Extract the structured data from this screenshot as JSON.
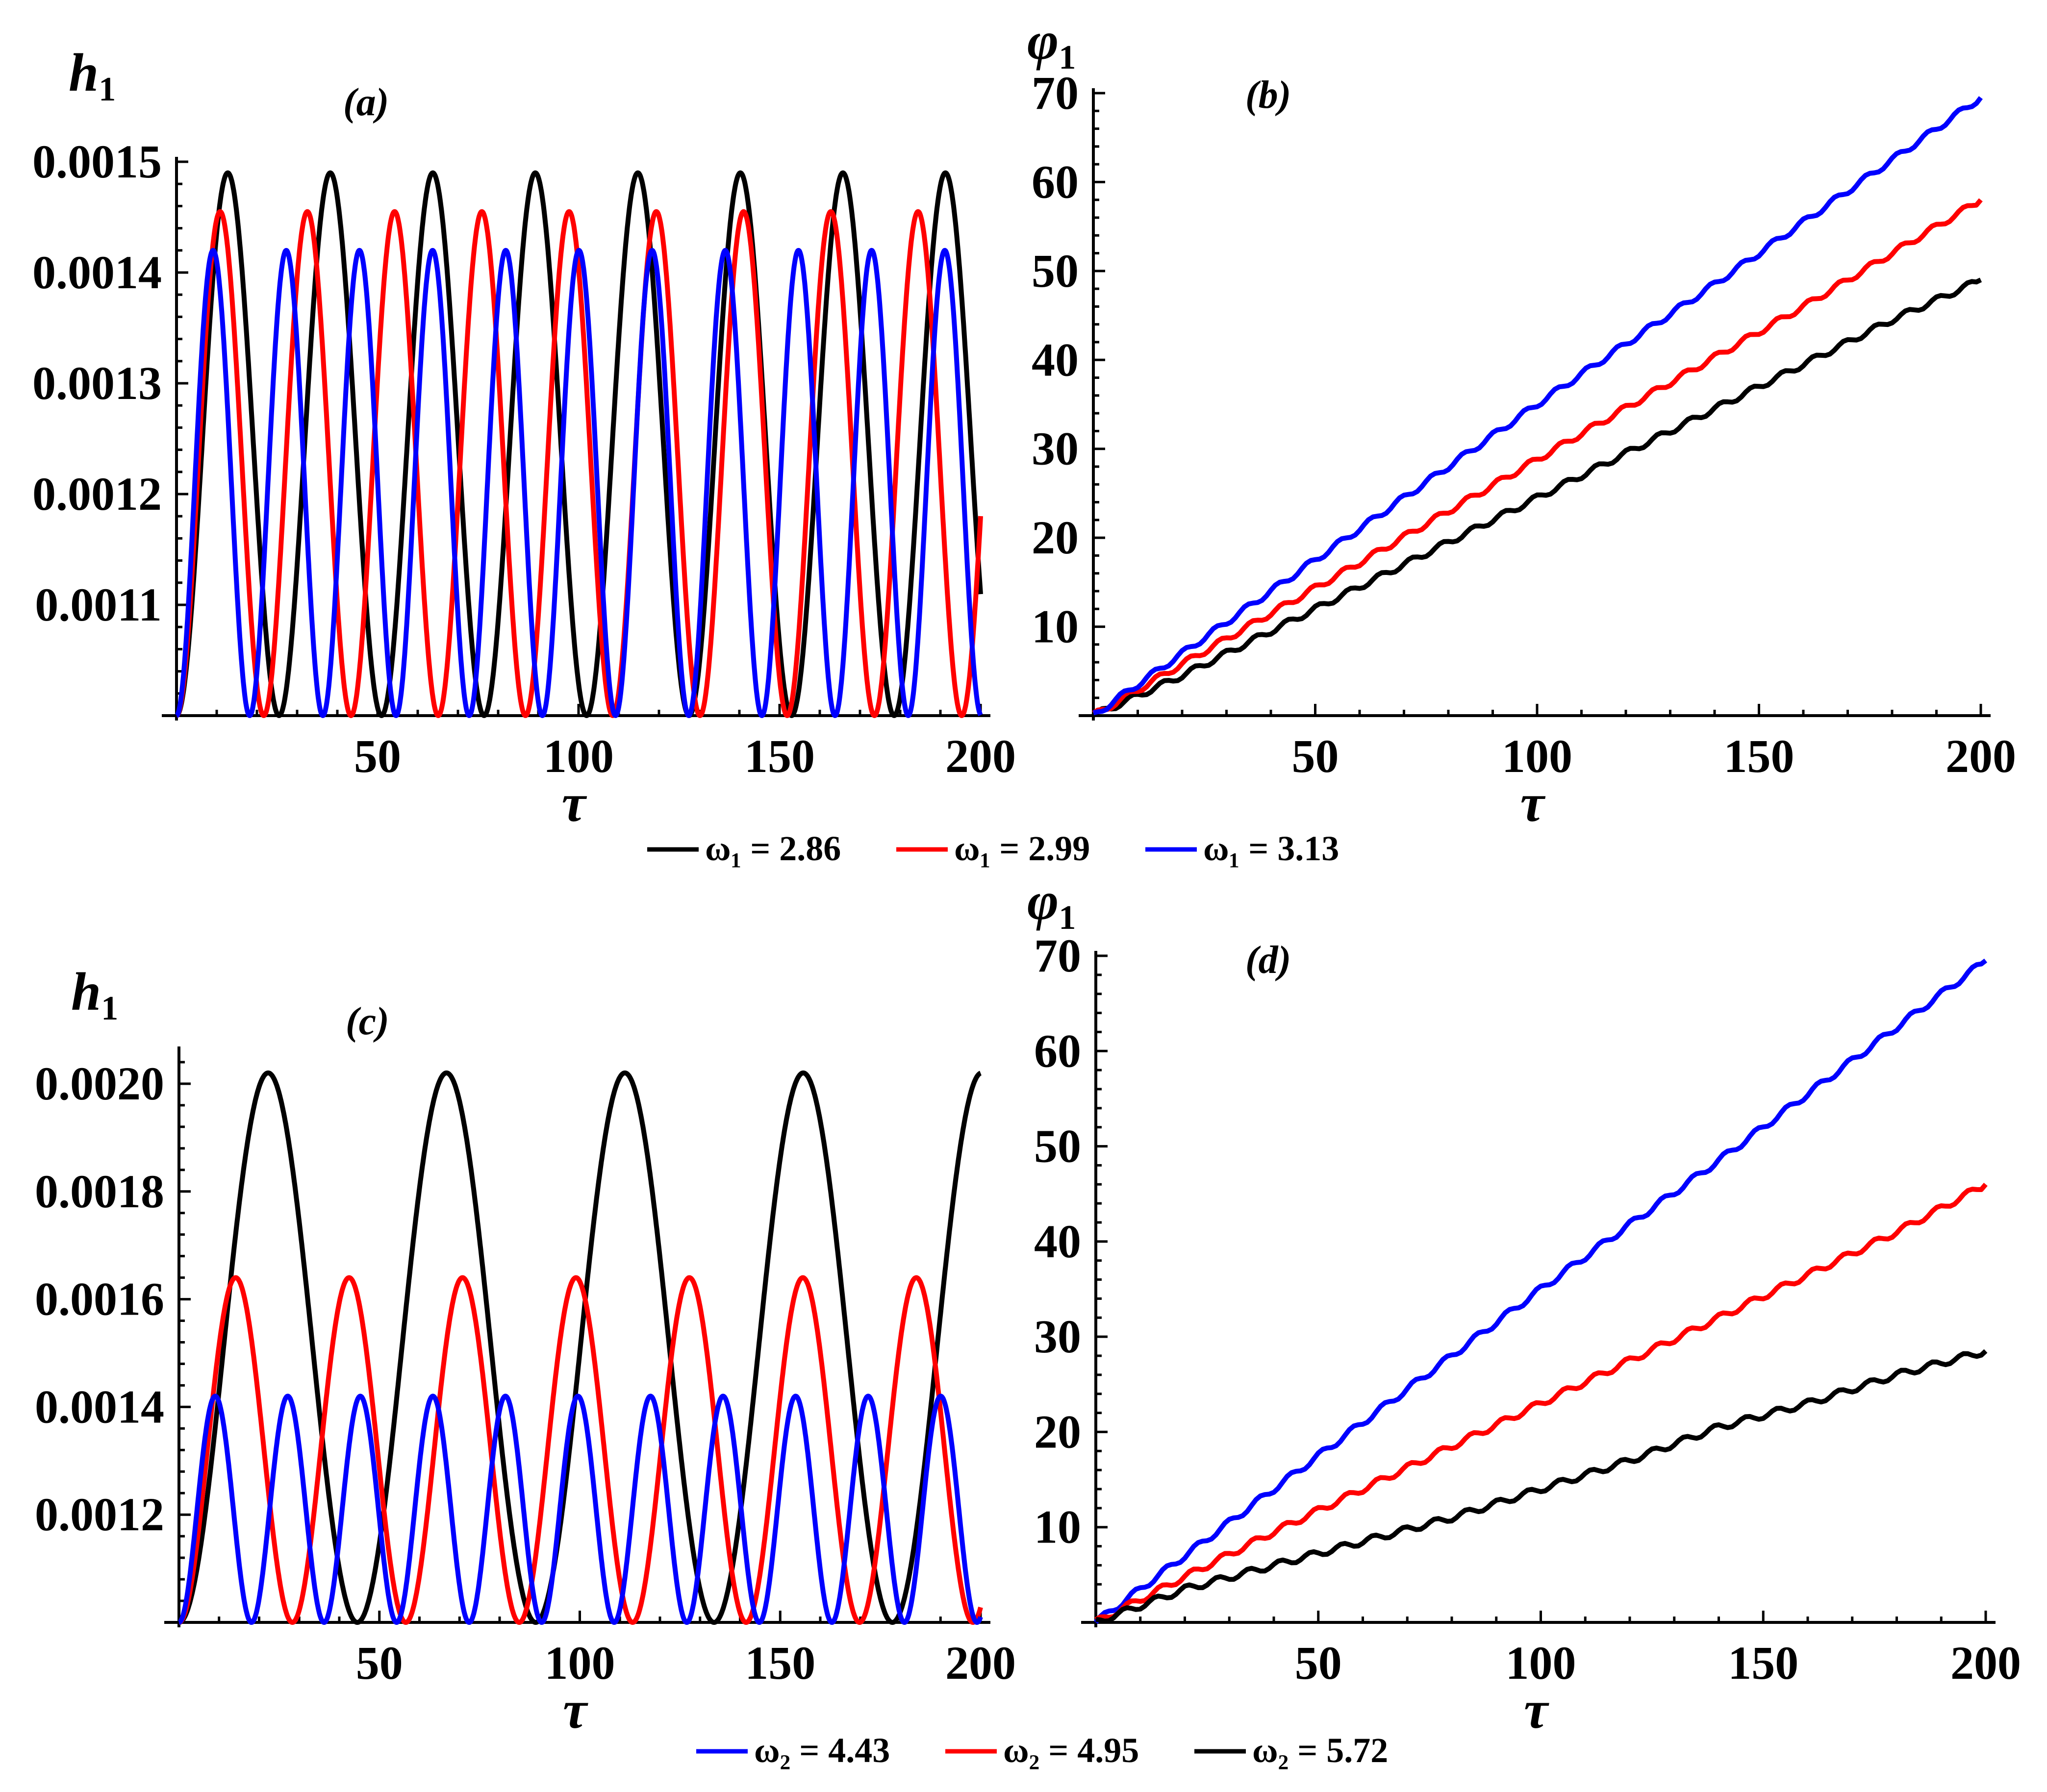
{
  "colors": {
    "black": "#000000",
    "red": "#ff0000",
    "blue": "#0000ff"
  },
  "legends": [
    {
      "items": [
        {
          "label": "ω₁ = 2.86",
          "color": "#000000"
        },
        {
          "label": "ω₁ = 2.99",
          "color": "#ff0000"
        },
        {
          "label": "ω₁ =  3.13",
          "color": "#0000ff"
        }
      ]
    },
    {
      "items": [
        {
          "label": "ω₂ = 4.43",
          "color": "#0000ff"
        },
        {
          "label": "ω₂ = 4.95",
          "color": "#ff0000"
        },
        {
          "label": "ω₂ = 5.72",
          "color": "#000000"
        }
      ]
    }
  ],
  "chart_data": [
    {
      "id": "a",
      "type": "line",
      "panel_label": "(a)",
      "ylabel_sym": "h",
      "ylabel_sub": "1",
      "xlabel": "τ",
      "xlim": [
        0,
        200
      ],
      "ylim": [
        0.001,
        0.0015
      ],
      "xticks": [
        50,
        100,
        150,
        200
      ],
      "xtick_labels": [
        "50",
        "100",
        "150",
        "200"
      ],
      "yticks": [
        0.0011,
        0.0012,
        0.0013,
        0.0014,
        0.0015
      ],
      "ytick_labels": [
        "0.0011",
        "0.0012",
        "0.0013",
        "0.0014",
        "0.0015"
      ],
      "series": [
        {
          "name": "ω₁ = 2.86",
          "color": "#000000",
          "kind": "osc",
          "min": 0.001,
          "max": 0.00149,
          "period": 25.5,
          "xmax": 200
        },
        {
          "name": "ω₁ = 2.99",
          "color": "#ff0000",
          "kind": "osc",
          "min": 0.001,
          "max": 0.001455,
          "period": 21.7,
          "xmax": 200
        },
        {
          "name": "ω₁ = 3.13",
          "color": "#0000ff",
          "kind": "osc",
          "min": 0.001,
          "max": 0.00142,
          "period": 18.2,
          "xmax": 200
        }
      ]
    },
    {
      "id": "b",
      "type": "line",
      "panel_label": "(b)",
      "ylabel_sym": "φ",
      "ylabel_sub": "1",
      "xlabel": "τ",
      "xlim": [
        0,
        200
      ],
      "ylim": [
        0,
        70
      ],
      "xticks": [
        50,
        100,
        150,
        200
      ],
      "xtick_labels": [
        "50",
        "100",
        "150",
        "200"
      ],
      "yticks": [
        10,
        20,
        30,
        40,
        50,
        60,
        70
      ],
      "ytick_labels": [
        "10",
        "20",
        "30",
        "40",
        "50",
        "60",
        "70"
      ],
      "series": [
        {
          "name": "ω₁ = 2.86",
          "color": "#000000",
          "kind": "points",
          "x": [
            0,
            20,
            40,
            60,
            80,
            100,
            120,
            140,
            160,
            180,
            200
          ],
          "y": [
            0,
            4.5,
            9.5,
            14.5,
            19.5,
            24.5,
            29.5,
            34.5,
            39.5,
            44.5,
            49
          ]
        },
        {
          "name": "ω₁ = 2.99",
          "color": "#ff0000",
          "kind": "points",
          "x": [
            0,
            20,
            40,
            60,
            80,
            100,
            120,
            140,
            160,
            180,
            200
          ],
          "y": [
            0,
            5.8,
            11.5,
            17.2,
            23,
            28.8,
            34.6,
            40.3,
            46,
            52,
            58
          ]
        },
        {
          "name": "ω₁ = 3.13",
          "color": "#0000ff",
          "kind": "points",
          "x": [
            0,
            20,
            40,
            60,
            80,
            100,
            120,
            140,
            160,
            180,
            200
          ],
          "y": [
            0,
            7,
            14,
            21,
            28,
            35,
            41.8,
            48.5,
            55.5,
            62.5,
            69.5
          ]
        }
      ]
    },
    {
      "id": "c",
      "type": "line",
      "panel_label": "(c)",
      "ylabel_sym": "h",
      "ylabel_sub": "1",
      "xlabel": "τ",
      "xlim": [
        0,
        200
      ],
      "ylim": [
        0.001,
        0.00206
      ],
      "xticks": [
        50,
        100,
        150,
        200
      ],
      "xtick_labels": [
        "50",
        "100",
        "150",
        "200"
      ],
      "yticks": [
        0.0012,
        0.0014,
        0.0016,
        0.0018,
        0.002
      ],
      "ytick_labels": [
        "0.0012",
        "0.0014",
        "0.0016",
        "0.0018",
        "0.0020"
      ],
      "series": [
        {
          "name": "ω₂ = 5.72",
          "color": "#000000",
          "kind": "osc",
          "min": 0.001,
          "max": 0.00202,
          "period": 44.5,
          "xmax": 200
        },
        {
          "name": "ω₂ = 4.95",
          "color": "#ff0000",
          "kind": "osc",
          "min": 0.001,
          "max": 0.00164,
          "period": 28.3,
          "xmax": 200
        },
        {
          "name": "ω₂ = 4.43",
          "color": "#0000ff",
          "kind": "osc",
          "min": 0.001,
          "max": 0.00142,
          "period": 18.1,
          "xmax": 200
        }
      ]
    },
    {
      "id": "d",
      "type": "line",
      "panel_label": "(d)",
      "ylabel_sym": "φ",
      "ylabel_sub": "1",
      "xlabel": "τ",
      "xlim": [
        0,
        200
      ],
      "ylim": [
        0,
        70
      ],
      "xticks": [
        50,
        100,
        150,
        200
      ],
      "xtick_labels": [
        "50",
        "100",
        "150",
        "200"
      ],
      "yticks": [
        10,
        20,
        30,
        40,
        50,
        60,
        70
      ],
      "ytick_labels": [
        "10",
        "20",
        "30",
        "40",
        "50",
        "60",
        "70"
      ],
      "series": [
        {
          "name": "ω₂ = 4.43",
          "color": "#0000ff",
          "kind": "points",
          "x": [
            0,
            20,
            40,
            60,
            80,
            100,
            120,
            140,
            160,
            180,
            200
          ],
          "y": [
            0,
            7,
            14,
            21,
            28,
            35,
            41.8,
            48.5,
            55.5,
            62.5,
            69.5
          ]
        },
        {
          "name": "ω₂ = 4.95",
          "color": "#ff0000",
          "kind": "points",
          "x": [
            0,
            20,
            40,
            60,
            80,
            100,
            120,
            140,
            160,
            180,
            200
          ],
          "y": [
            0,
            4.8,
            9.5,
            14,
            18.5,
            23,
            27.5,
            32,
            36.5,
            41,
            46
          ]
        },
        {
          "name": "ω₂ = 5.72",
          "color": "#000000",
          "kind": "points",
          "x": [
            0,
            20,
            40,
            60,
            80,
            100,
            120,
            140,
            160,
            180,
            200
          ],
          "y": [
            0,
            3.5,
            6,
            8.5,
            11,
            14,
            17,
            20.5,
            23,
            26,
            28.5
          ]
        }
      ]
    }
  ]
}
